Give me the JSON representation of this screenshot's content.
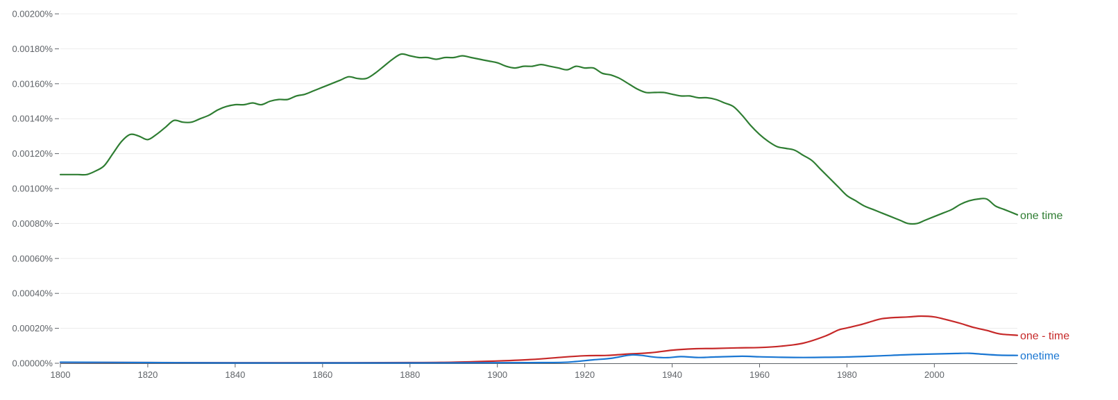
{
  "chart_data": {
    "type": "line",
    "title": "",
    "xlabel": "",
    "ylabel": "",
    "xlim": [
      1800,
      2019
    ],
    "ylim": [
      0,
      0.002
    ],
    "grid": true,
    "legend": "inline labels at right end of each line",
    "x_ticks": [
      1800,
      1820,
      1840,
      1860,
      1880,
      1900,
      1920,
      1940,
      1960,
      1980,
      2000
    ],
    "x_tick_labels": [
      "1800",
      "1820",
      "1840",
      "1860",
      "1880",
      "1900",
      "1920",
      "1940",
      "1960",
      "1980",
      "2000"
    ],
    "y_ticks": [
      0,
      0.0002,
      0.0004,
      0.0006,
      0.0008,
      0.001,
      0.0012,
      0.0014,
      0.0016,
      0.0018,
      0.002
    ],
    "y_tick_labels": [
      "0.00000%",
      "0.00020%",
      "0.00040%",
      "0.00060%",
      "0.00080%",
      "0.00100%",
      "0.00120%",
      "0.00140%",
      "0.00160%",
      "0.00180%",
      "0.00200%"
    ],
    "series": [
      {
        "name": "one time",
        "color": "#2e7d32",
        "points": [
          [
            1800,
            0.00108
          ],
          [
            1802,
            0.00108
          ],
          [
            1804,
            0.00108
          ],
          [
            1806,
            0.00108
          ],
          [
            1808,
            0.0011
          ],
          [
            1810,
            0.00113
          ],
          [
            1812,
            0.0012
          ],
          [
            1814,
            0.00127
          ],
          [
            1816,
            0.00131
          ],
          [
            1818,
            0.0013
          ],
          [
            1820,
            0.00128
          ],
          [
            1822,
            0.00131
          ],
          [
            1824,
            0.00135
          ],
          [
            1826,
            0.00139
          ],
          [
            1828,
            0.00138
          ],
          [
            1830,
            0.00138
          ],
          [
            1832,
            0.0014
          ],
          [
            1834,
            0.00142
          ],
          [
            1836,
            0.00145
          ],
          [
            1838,
            0.00147
          ],
          [
            1840,
            0.00148
          ],
          [
            1842,
            0.00148
          ],
          [
            1844,
            0.00149
          ],
          [
            1846,
            0.00148
          ],
          [
            1848,
            0.0015
          ],
          [
            1850,
            0.00151
          ],
          [
            1852,
            0.00151
          ],
          [
            1854,
            0.00153
          ],
          [
            1856,
            0.00154
          ],
          [
            1858,
            0.00156
          ],
          [
            1860,
            0.00158
          ],
          [
            1862,
            0.0016
          ],
          [
            1864,
            0.00162
          ],
          [
            1866,
            0.00164
          ],
          [
            1868,
            0.00163
          ],
          [
            1870,
            0.00163
          ],
          [
            1872,
            0.00166
          ],
          [
            1874,
            0.0017
          ],
          [
            1876,
            0.00174
          ],
          [
            1878,
            0.00177
          ],
          [
            1880,
            0.00176
          ],
          [
            1882,
            0.00175
          ],
          [
            1884,
            0.00175
          ],
          [
            1886,
            0.00174
          ],
          [
            1888,
            0.00175
          ],
          [
            1890,
            0.00175
          ],
          [
            1892,
            0.00176
          ],
          [
            1894,
            0.00175
          ],
          [
            1896,
            0.00174
          ],
          [
            1898,
            0.00173
          ],
          [
            1900,
            0.00172
          ],
          [
            1902,
            0.0017
          ],
          [
            1904,
            0.00169
          ],
          [
            1906,
            0.0017
          ],
          [
            1908,
            0.0017
          ],
          [
            1910,
            0.00171
          ],
          [
            1912,
            0.0017
          ],
          [
            1914,
            0.00169
          ],
          [
            1916,
            0.00168
          ],
          [
            1918,
            0.0017
          ],
          [
            1920,
            0.00169
          ],
          [
            1922,
            0.00169
          ],
          [
            1924,
            0.00166
          ],
          [
            1926,
            0.00165
          ],
          [
            1928,
            0.00163
          ],
          [
            1930,
            0.0016
          ],
          [
            1932,
            0.00157
          ],
          [
            1934,
            0.00155
          ],
          [
            1936,
            0.00155
          ],
          [
            1938,
            0.00155
          ],
          [
            1940,
            0.00154
          ],
          [
            1942,
            0.00153
          ],
          [
            1944,
            0.00153
          ],
          [
            1946,
            0.00152
          ],
          [
            1948,
            0.00152
          ],
          [
            1950,
            0.00151
          ],
          [
            1952,
            0.00149
          ],
          [
            1954,
            0.00147
          ],
          [
            1956,
            0.00142
          ],
          [
            1958,
            0.00136
          ],
          [
            1960,
            0.00131
          ],
          [
            1962,
            0.00127
          ],
          [
            1964,
            0.00124
          ],
          [
            1966,
            0.00123
          ],
          [
            1968,
            0.00122
          ],
          [
            1970,
            0.00119
          ],
          [
            1972,
            0.00116
          ],
          [
            1974,
            0.00111
          ],
          [
            1976,
            0.00106
          ],
          [
            1978,
            0.00101
          ],
          [
            1980,
            0.00096
          ],
          [
            1982,
            0.00093
          ],
          [
            1984,
            0.0009
          ],
          [
            1986,
            0.00088
          ],
          [
            1988,
            0.00086
          ],
          [
            1990,
            0.00084
          ],
          [
            1992,
            0.00082
          ],
          [
            1994,
            0.0008
          ],
          [
            1996,
            0.0008
          ],
          [
            1998,
            0.00082
          ],
          [
            2000,
            0.00084
          ],
          [
            2002,
            0.00086
          ],
          [
            2004,
            0.00088
          ],
          [
            2006,
            0.00091
          ],
          [
            2008,
            0.00093
          ],
          [
            2010,
            0.00094
          ],
          [
            2012,
            0.00094
          ],
          [
            2014,
            0.0009
          ],
          [
            2016,
            0.00088
          ],
          [
            2019,
            0.00085
          ]
        ]
      },
      {
        "name": "one - time",
        "color": "#c62828",
        "points": [
          [
            1800,
            5e-06
          ],
          [
            1820,
            4e-06
          ],
          [
            1840,
            3e-06
          ],
          [
            1860,
            3e-06
          ],
          [
            1880,
            4e-06
          ],
          [
            1890,
            6e-06
          ],
          [
            1900,
            1.3e-05
          ],
          [
            1905,
            1.8e-05
          ],
          [
            1910,
            2.5e-05
          ],
          [
            1915,
            3.5e-05
          ],
          [
            1920,
            4.3e-05
          ],
          [
            1925,
            4.5e-05
          ],
          [
            1930,
            5.3e-05
          ],
          [
            1935,
            6e-05
          ],
          [
            1940,
            7.5e-05
          ],
          [
            1945,
            8.3e-05
          ],
          [
            1950,
            8.5e-05
          ],
          [
            1955,
            8.8e-05
          ],
          [
            1960,
            9e-05
          ],
          [
            1965,
            9.8e-05
          ],
          [
            1970,
            0.000115
          ],
          [
            1975,
            0.000155
          ],
          [
            1978,
            0.00019
          ],
          [
            1980,
            0.000202
          ],
          [
            1983,
            0.00022
          ],
          [
            1986,
            0.000242
          ],
          [
            1988,
            0.000255
          ],
          [
            1991,
            0.000262
          ],
          [
            1994,
            0.000265
          ],
          [
            1997,
            0.00027
          ],
          [
            2000,
            0.000265
          ],
          [
            2003,
            0.000248
          ],
          [
            2006,
            0.000228
          ],
          [
            2009,
            0.000205
          ],
          [
            2012,
            0.000188
          ],
          [
            2015,
            0.000168
          ],
          [
            2019,
            0.00016
          ]
        ]
      },
      {
        "name": "onetime",
        "color": "#1976d2",
        "points": [
          [
            1800,
            6e-06
          ],
          [
            1810,
            5e-06
          ],
          [
            1820,
            4e-06
          ],
          [
            1840,
            2e-06
          ],
          [
            1860,
            2e-06
          ],
          [
            1880,
            2e-06
          ],
          [
            1900,
            3e-06
          ],
          [
            1910,
            4e-06
          ],
          [
            1915,
            5e-06
          ],
          [
            1918,
            1e-05
          ],
          [
            1922,
            2e-05
          ],
          [
            1926,
            2.8e-05
          ],
          [
            1929,
            4.2e-05
          ],
          [
            1931,
            4.8e-05
          ],
          [
            1933,
            4.5e-05
          ],
          [
            1936,
            3.5e-05
          ],
          [
            1939,
            3.2e-05
          ],
          [
            1942,
            3.8e-05
          ],
          [
            1946,
            3.3e-05
          ],
          [
            1950,
            3.6e-05
          ],
          [
            1956,
            4e-05
          ],
          [
            1960,
            3.7e-05
          ],
          [
            1965,
            3.4e-05
          ],
          [
            1970,
            3.3e-05
          ],
          [
            1975,
            3.4e-05
          ],
          [
            1980,
            3.6e-05
          ],
          [
            1985,
            4e-05
          ],
          [
            1990,
            4.5e-05
          ],
          [
            1995,
            5e-05
          ],
          [
            2000,
            5.3e-05
          ],
          [
            2005,
            5.6e-05
          ],
          [
            2008,
            5.7e-05
          ],
          [
            2011,
            5.2e-05
          ],
          [
            2015,
            4.6e-05
          ],
          [
            2019,
            4.5e-05
          ]
        ]
      }
    ]
  }
}
